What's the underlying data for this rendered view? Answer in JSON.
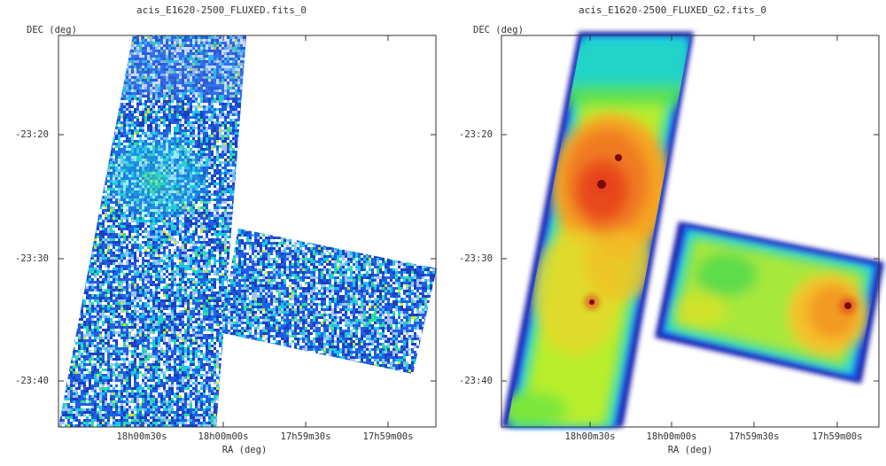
{
  "colors": {
    "background": "#ffffff",
    "axis": "#333333",
    "colormap": [
      "#1a1aa8",
      "#1f6bf0",
      "#19d2ee",
      "#3fe33f",
      "#eef024",
      "#f5a623",
      "#e23a1a",
      "#7a0a0a"
    ]
  },
  "chart_data": [
    {
      "type": "heatmap",
      "title": "acis_E1620-2500_FLUXED.fits_0",
      "xlabel": "RA (deg)",
      "ylabel": "DEC (deg)",
      "x_ticks": [
        "18h00m30s",
        "18h00m00s",
        "17h59m30s",
        "17h59m00s"
      ],
      "y_ticks": [
        "-23:20",
        "-23:30",
        "-23:40"
      ],
      "colormap": "jet",
      "style": "noisy",
      "hotspots": []
    },
    {
      "type": "heatmap",
      "title": "acis_E1620-2500_FLUXED_G2.fits_0",
      "xlabel": "RA (deg)",
      "ylabel": "DEC (deg)",
      "x_ticks": [
        "18h00m30s",
        "18h00m00s",
        "17h59m30s",
        "17h59m00s"
      ],
      "y_ticks": [
        "-23:20",
        "-23:30",
        "-23:40"
      ],
      "colormap": "jet",
      "style": "smoothed",
      "hotspots": [
        {
          "ra": "18h00m25s",
          "dec": "-23:22",
          "level": 1.0
        },
        {
          "ra": "17h59m00s",
          "dec": "-23:34",
          "level": 0.95
        },
        {
          "ra": "18h00m33s",
          "dec": "-23:34",
          "level": 0.85
        }
      ]
    }
  ]
}
